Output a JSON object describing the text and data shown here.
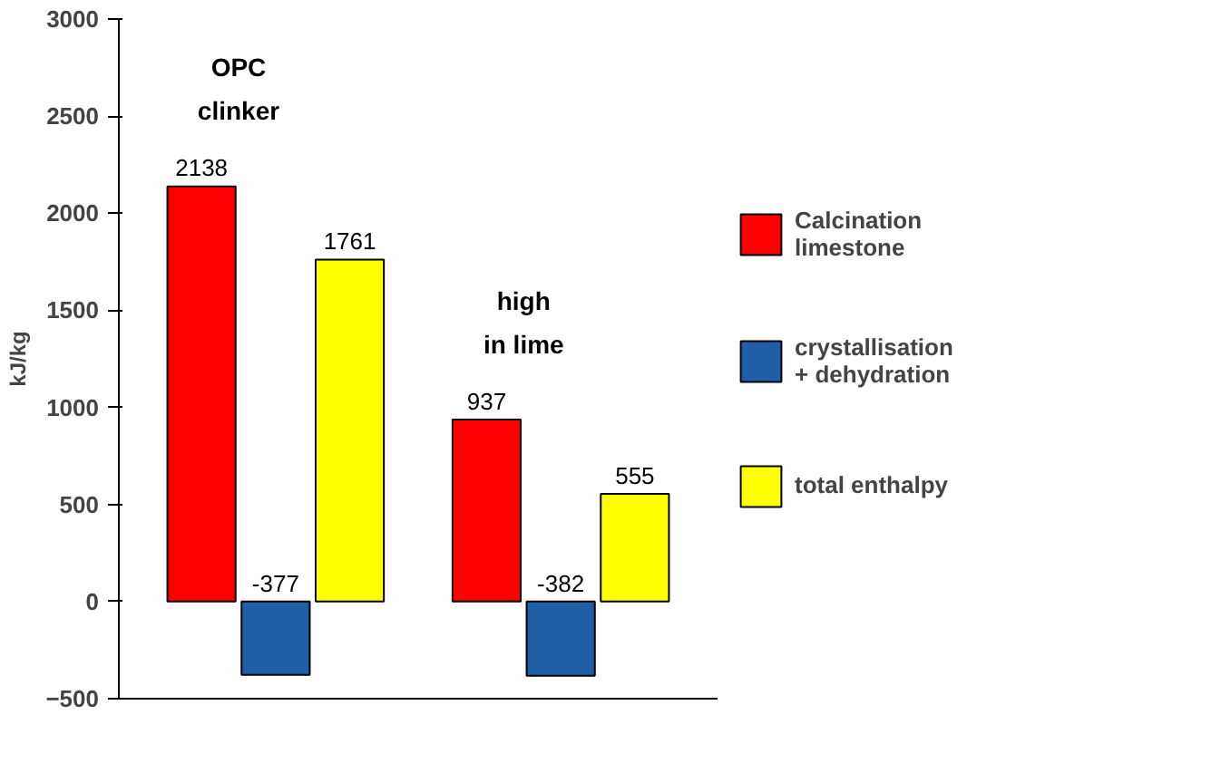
{
  "chart_data": {
    "type": "bar",
    "categories": [
      null,
      null
    ],
    "series": [
      {
        "name": "Calcination limestone",
        "color": "#ff0000",
        "values": [
          2138,
          937
        ]
      },
      {
        "name": "crystallisation + dehydration",
        "color": "#1f5fa8",
        "values": [
          -377,
          -382
        ]
      },
      {
        "name": "total enthalpy",
        "color": "#ffff00",
        "values": [
          1761,
          555
        ]
      }
    ],
    "ylabel": "kJ/kg",
    "ylim": [
      -500,
      3000
    ],
    "yticks": [
      -500,
      0,
      500,
      1000,
      1500,
      2000,
      2500,
      3000
    ],
    "annotations": [
      "OPC clinker",
      "high in lime"
    ],
    "data_labels": true,
    "grid": false,
    "legend": "right"
  }
}
